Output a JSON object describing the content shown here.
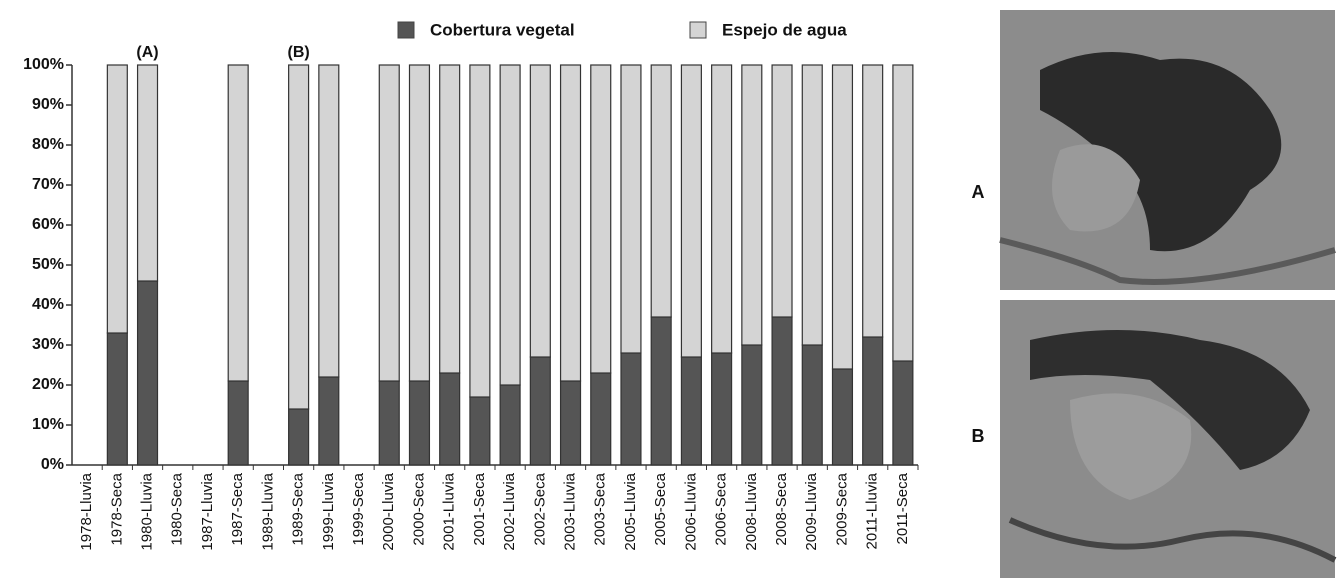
{
  "chart_data": {
    "type": "stacked-bar",
    "categories": [
      "1978-Lluvia",
      "1978-Seca",
      "1980-Lluvia",
      "1980-Seca",
      "1987-Lluvia",
      "1987-Seca",
      "1989-Lluvia",
      "1989-Seca",
      "1999-Lluvia",
      "1999-Seca",
      "2000-Lluvia",
      "2000-Seca",
      "2001-Lluvia",
      "2001-Seca",
      "2002-Lluvia",
      "2002-Seca",
      "2003-Lluvia",
      "2003-Seca",
      "2005-Lluvia",
      "2005-Seca",
      "2006-Lluvia",
      "2006-Seca",
      "2008-Lluvia",
      "2008-Seca",
      "2009-Lluvia",
      "2009-Seca",
      "2011-Lluvia",
      "2011-Seca"
    ],
    "series": [
      {
        "name": "Cobertura vegetal",
        "color": "#555555",
        "values": [
          null,
          33,
          46,
          null,
          null,
          21,
          null,
          14,
          22,
          null,
          21,
          21,
          23,
          17,
          20,
          27,
          21,
          23,
          28,
          37,
          27,
          28,
          30,
          37,
          30,
          24,
          32,
          26
        ]
      },
      {
        "name": "Espejo de agua",
        "color": "#d4d4d4",
        "values": [
          null,
          67,
          54,
          null,
          null,
          79,
          null,
          86,
          78,
          null,
          79,
          79,
          77,
          83,
          80,
          73,
          79,
          77,
          72,
          63,
          73,
          72,
          70,
          63,
          70,
          76,
          68,
          74
        ]
      }
    ],
    "ylim": [
      0,
      100
    ],
    "yticks": [
      {
        "value": 0,
        "label": "0%"
      },
      {
        "value": 10,
        "label": "10%"
      },
      {
        "value": 20,
        "label": "20%"
      },
      {
        "value": 30,
        "label": "30%"
      },
      {
        "value": 40,
        "label": "40%"
      },
      {
        "value": 50,
        "label": "50%"
      },
      {
        "value": 60,
        "label": "60%"
      },
      {
        "value": 70,
        "label": "70%"
      },
      {
        "value": 80,
        "label": "80%"
      },
      {
        "value": 90,
        "label": "90%"
      },
      {
        "value": 100,
        "label": "100%"
      }
    ],
    "legend": "top",
    "annotations": [
      {
        "text": "(A)",
        "category": "1980-Lluvia"
      },
      {
        "text": "(B)",
        "category": "1989-Seca"
      }
    ]
  },
  "photos": [
    {
      "label": "A"
    },
    {
      "label": "B"
    }
  ]
}
